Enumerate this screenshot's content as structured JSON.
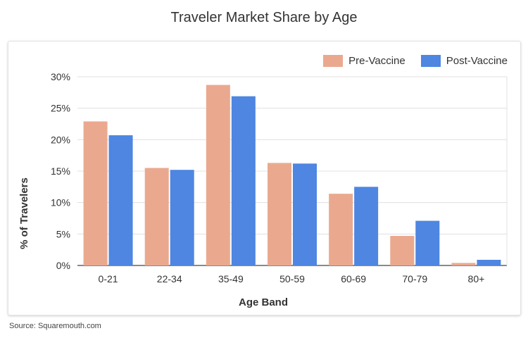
{
  "chart_data": {
    "type": "bar",
    "title": "Traveler Market Share by Age",
    "xlabel": "Age Band",
    "ylabel": "% of Travelers",
    "categories": [
      "0-21",
      "22-34",
      "35-49",
      "50-59",
      "60-69",
      "70-79",
      "80+"
    ],
    "series": [
      {
        "name": "Pre-Vaccine",
        "color": "#eaa98f",
        "values": [
          22.9,
          15.5,
          28.7,
          16.3,
          11.4,
          4.7,
          0.4
        ]
      },
      {
        "name": "Post-Vaccine",
        "color": "#4e86e1",
        "values": [
          20.7,
          15.2,
          26.9,
          16.2,
          12.5,
          7.1,
          0.9
        ]
      }
    ],
    "ylim": [
      0,
      30
    ],
    "yticks": [
      0,
      5,
      10,
      15,
      20,
      25,
      30
    ],
    "ytick_labels": [
      "0%",
      "5%",
      "10%",
      "15%",
      "20%",
      "25%",
      "30%"
    ],
    "grid": true,
    "legend_position": "top-right"
  },
  "source": "Source: Squaremouth.com"
}
